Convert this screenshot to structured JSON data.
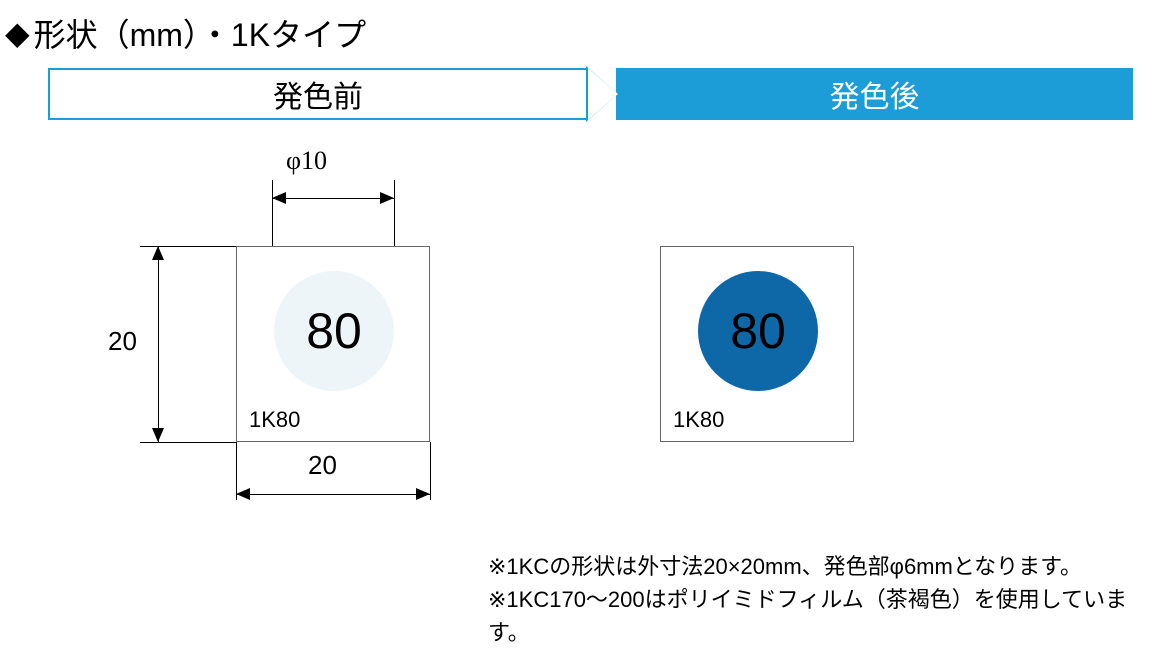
{
  "title": "形状（mm）・1Kタイプ",
  "header": {
    "before": "発色前",
    "after": "発色後"
  },
  "diagram": {
    "phi_label": "φ10",
    "height_label": "20",
    "width_label": "20",
    "sample_value": "80",
    "sample_code": "1K80",
    "circle_before_bg": "#eef5f9",
    "circle_after_bg": "#0e68a8",
    "border_color": "#1c9dd8",
    "card_size_mm": 20,
    "circle_diameter_mm": 10
  },
  "notes": {
    "line1": "※1KCの形状は外寸法20×20mm、発色部φ6mmとなります。",
    "line2": "※1KC170〜200はポリイミドフィルム（茶褐色）を使用しています。"
  }
}
